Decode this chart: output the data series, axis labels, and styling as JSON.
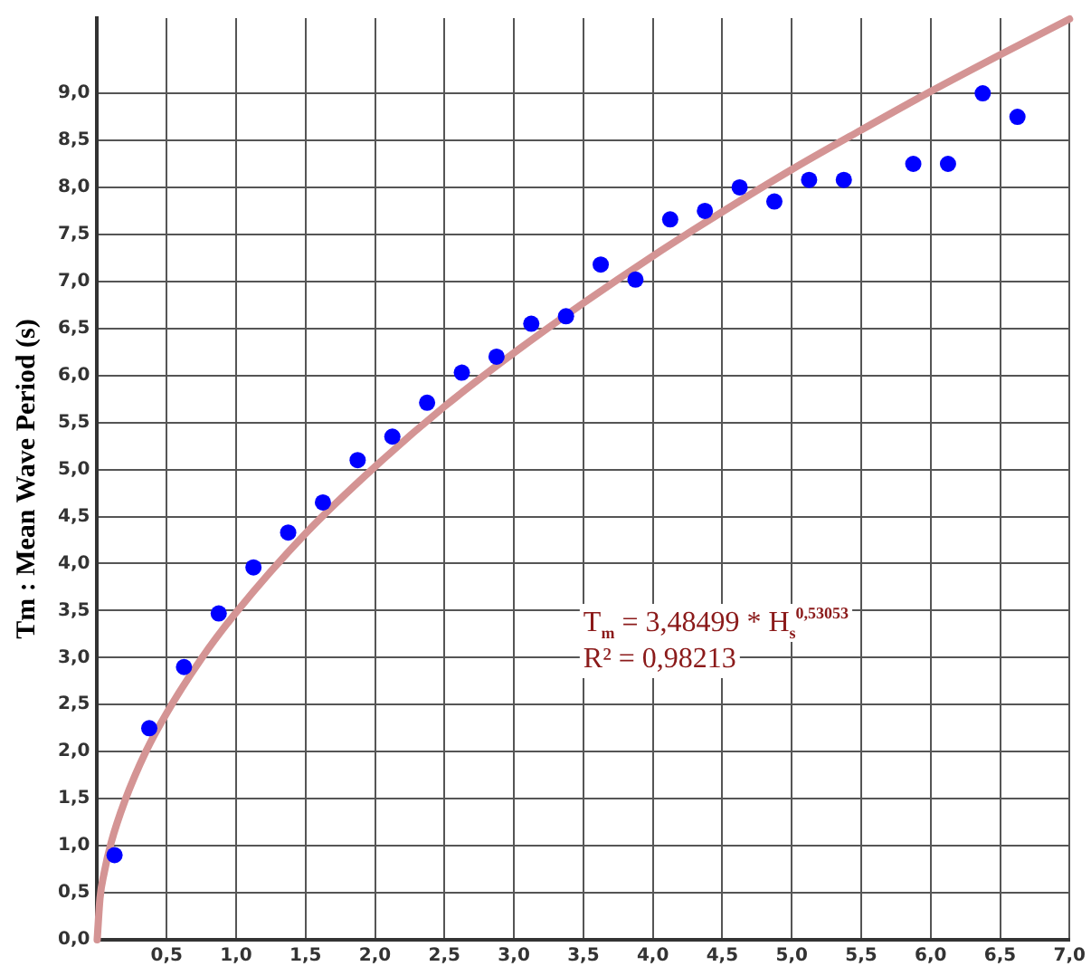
{
  "chart_data": {
    "type": "scatter",
    "ylabel": "Tm : Mean Wave Period (s)",
    "annotations": [
      "T$_{m}$ = 3,48499 * H$_{s}$$^{0,53053}$",
      "R² = 0,98213"
    ],
    "xlim": [
      0,
      7
    ],
    "ylim": [
      0,
      9.8
    ],
    "xticks": [
      {
        "value": 0.5,
        "label": "0,5"
      },
      {
        "value": 1,
        "label": "1,0"
      },
      {
        "value": 1.5,
        "label": "1,5"
      },
      {
        "value": 2,
        "label": "2,0"
      },
      {
        "value": 2.5,
        "label": "2,5"
      },
      {
        "value": 3,
        "label": "3,0"
      },
      {
        "value": 3.5,
        "label": "3,5"
      },
      {
        "value": 4,
        "label": "4,0"
      },
      {
        "value": 4.5,
        "label": "4,5"
      },
      {
        "value": 5,
        "label": "5,0"
      },
      {
        "value": 5.5,
        "label": "5,5"
      },
      {
        "value": 6,
        "label": "6,0"
      },
      {
        "value": 6.5,
        "label": "6,5"
      },
      {
        "value": 7,
        "label": "7,0"
      }
    ],
    "yticks": [
      {
        "value": 0,
        "label": "0,0"
      },
      {
        "value": 0.5,
        "label": "0,5"
      },
      {
        "value": 1,
        "label": "1,0"
      },
      {
        "value": 1.5,
        "label": "1,5"
      },
      {
        "value": 2,
        "label": "2,0"
      },
      {
        "value": 2.5,
        "label": "2,5"
      },
      {
        "value": 3,
        "label": "3,0"
      },
      {
        "value": 3.5,
        "label": "3,5"
      },
      {
        "value": 4,
        "label": "4,0"
      },
      {
        "value": 4.5,
        "label": "4,5"
      },
      {
        "value": 5,
        "label": "5,0"
      },
      {
        "value": 5.5,
        "label": "5,5"
      },
      {
        "value": 6,
        "label": "6,0"
      },
      {
        "value": 6.5,
        "label": "6,5"
      },
      {
        "value": 7,
        "label": "7,0"
      },
      {
        "value": 7.5,
        "label": "7,5"
      },
      {
        "value": 8,
        "label": "8,0"
      },
      {
        "value": 8.5,
        "label": "8,5"
      },
      {
        "value": 9,
        "label": "9,0"
      }
    ],
    "grid": true,
    "legend": false,
    "marker": "circle",
    "series": [
      {
        "type": "scatter",
        "color": "#0000ff",
        "x": [
          0.125,
          0.375,
          0.625,
          0.875,
          1.125,
          1.375,
          1.625,
          1.875,
          2.125,
          2.375,
          2.625,
          2.875,
          3.125,
          3.375,
          3.625,
          3.875,
          4.125,
          4.375,
          4.625,
          4.875,
          5.125,
          5.375,
          5.875,
          6.125,
          6.375,
          6.625
        ],
        "values": [
          0.9,
          2.25,
          2.9,
          3.47,
          3.96,
          4.33,
          4.65,
          5.1,
          5.35,
          5.71,
          6.03,
          6.2,
          6.55,
          6.63,
          7.18,
          7.02,
          7.66,
          7.75,
          8.0,
          7.85,
          8.08,
          8.08,
          8.25,
          8.25,
          9.0,
          8.75
        ]
      },
      {
        "type": "line",
        "color": "#d49494",
        "marker": "none",
        "line_style": "solid",
        "x": [
          0,
          0.02,
          0.05,
          0.1,
          0.2,
          0.35,
          0.5,
          0.75,
          1,
          1.5,
          2,
          2.5,
          3,
          3.5,
          4,
          4.5,
          5,
          5.5,
          6,
          6.5,
          7
        ],
        "values": [
          0,
          0.44,
          0.71,
          1.03,
          1.48,
          2.0,
          2.41,
          2.99,
          3.48,
          4.32,
          5.03,
          5.67,
          6.24,
          6.77,
          7.27,
          7.74,
          8.19,
          8.61,
          9.02,
          9.41,
          9.79
        ]
      }
    ]
  }
}
